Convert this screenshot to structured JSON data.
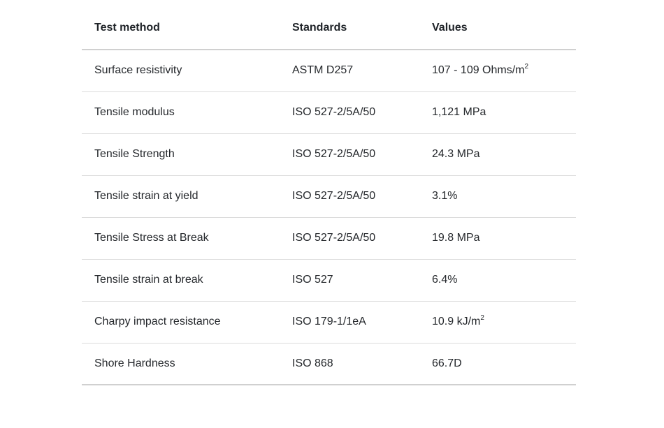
{
  "table": {
    "headers": {
      "test_method": "Test method",
      "standards": "Standards",
      "values": "Values"
    },
    "rows": [
      {
        "test_method": "Surface resistivity",
        "standard": "ASTM D257",
        "value": "107 - 109 Ohms/m",
        "value_sup": "2"
      },
      {
        "test_method": "Tensile modulus",
        "standard": "ISO 527-2/5A/50",
        "value": "1,121 MPa",
        "value_sup": ""
      },
      {
        "test_method": "Tensile Strength",
        "standard": "ISO 527-2/5A/50",
        "value": "24.3 MPa",
        "value_sup": ""
      },
      {
        "test_method": "Tensile strain at yield",
        "standard": "ISO 527-2/5A/50",
        "value": "3.1%",
        "value_sup": ""
      },
      {
        "test_method": "Tensile Stress at Break",
        "standard": "ISO 527-2/5A/50",
        "value": "19.8 MPa",
        "value_sup": ""
      },
      {
        "test_method": "Tensile strain at break",
        "standard": "ISO 527",
        "value": "6.4%",
        "value_sup": ""
      },
      {
        "test_method": "Charpy impact resistance",
        "standard": "ISO 179-1/1eA",
        "value": "10.9 kJ/m",
        "value_sup": "2"
      },
      {
        "test_method": "Shore Hardness",
        "standard": "ISO 868",
        "value": "66.7D",
        "value_sup": ""
      }
    ]
  }
}
